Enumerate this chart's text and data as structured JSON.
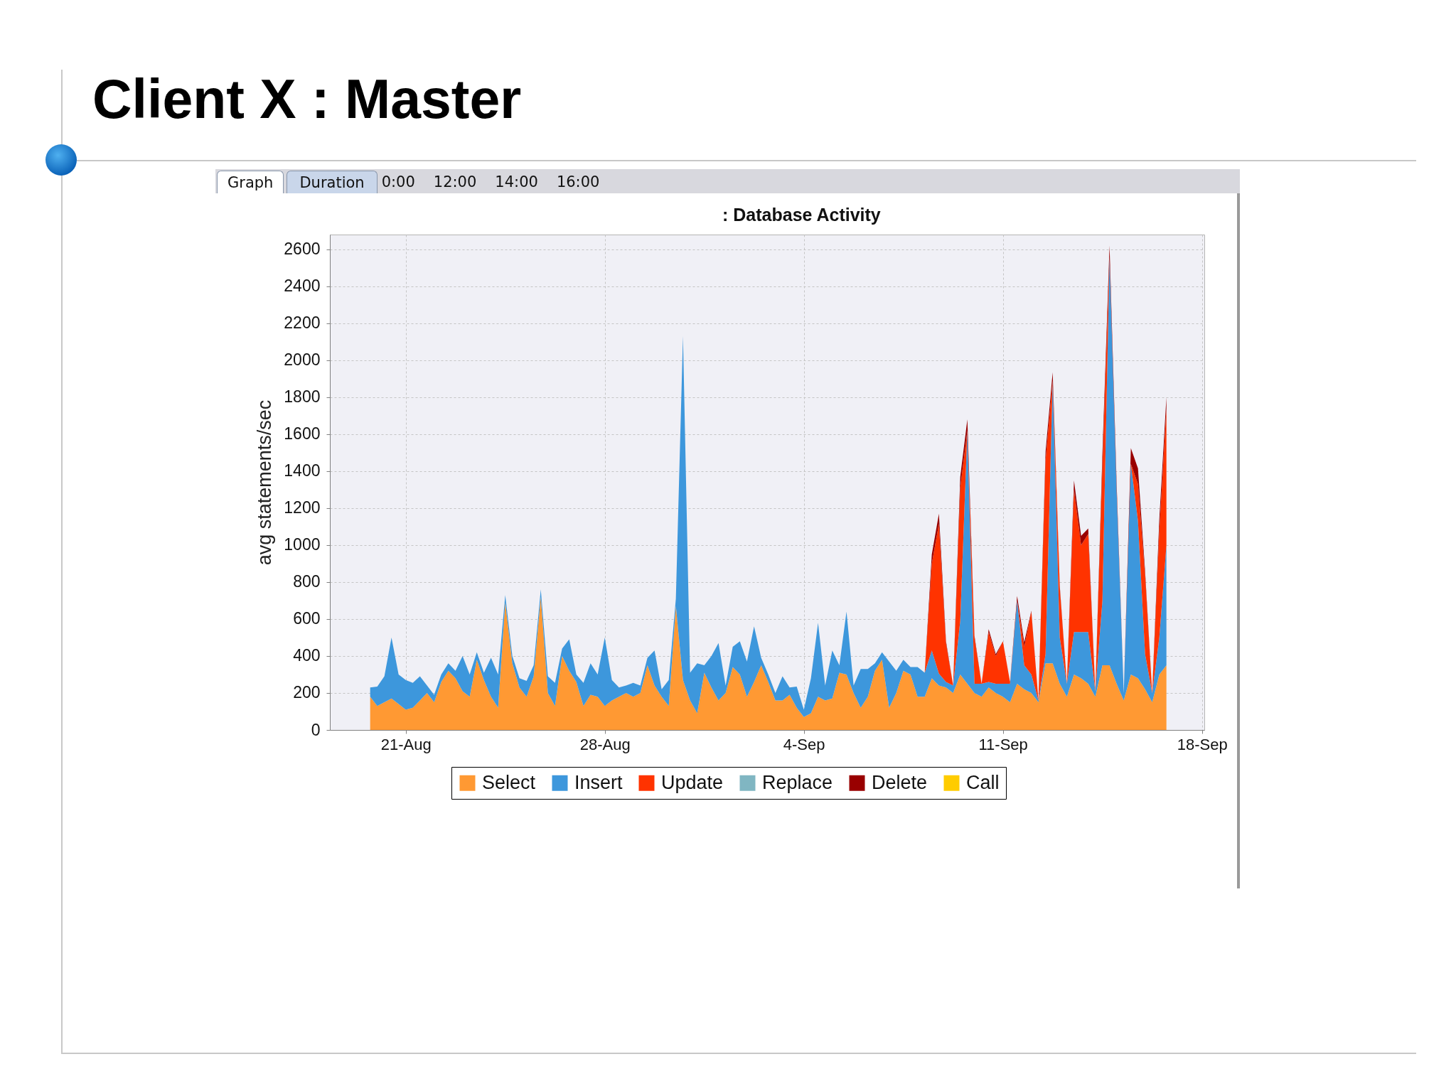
{
  "chart_data": {
    "type": "area",
    "stacked": true,
    "title": "Client X : Master",
    "subtitle": ": Database Activity",
    "ylabel": "avg statements/sec",
    "annotations": [
      "Graph",
      "Duration",
      "0:00",
      "12:00",
      "14:00",
      "16:00"
    ],
    "xlim": [
      "--08-18T08:00",
      "--09-18T02:00"
    ],
    "xticks": [
      {
        "value": "--08-21",
        "label": "21-Aug"
      },
      {
        "value": "--08-28",
        "label": "28-Aug"
      },
      {
        "value": "--09-04",
        "label": "4-Sep"
      },
      {
        "value": "--09-11",
        "label": "11-Sep"
      },
      {
        "value": "--09-18",
        "label": "18-Sep"
      }
    ],
    "ylim": [
      0,
      2680
    ],
    "yticks": [
      0,
      200,
      400,
      600,
      800,
      1000,
      1200,
      1400,
      1600,
      1800,
      2000,
      2200,
      2400,
      2600
    ],
    "grid": true,
    "legend": "bottom",
    "x": [
      "--08-19T18:00",
      "--08-20T00:00",
      "--08-20T06:00",
      "--08-20T12:00",
      "--08-20T18:00",
      "--08-21T00:00",
      "--08-21T06:00",
      "--08-21T12:00",
      "--08-21T18:00",
      "--08-22T00:00",
      "--08-22T06:00",
      "--08-22T12:00",
      "--08-22T18:00",
      "--08-23T00:00",
      "--08-23T06:00",
      "--08-23T12:00",
      "--08-23T18:00",
      "--08-24T00:00",
      "--08-24T06:00",
      "--08-24T12:00",
      "--08-24T18:00",
      "--08-25T00:00",
      "--08-25T06:00",
      "--08-25T12:00",
      "--08-25T18:00",
      "--08-26T00:00",
      "--08-26T06:00",
      "--08-26T12:00",
      "--08-26T18:00",
      "--08-27T00:00",
      "--08-27T06:00",
      "--08-27T12:00",
      "--08-27T18:00",
      "--08-28T00:00",
      "--08-28T06:00",
      "--08-28T12:00",
      "--08-28T18:00",
      "--08-29T00:00",
      "--08-29T06:00",
      "--08-29T12:00",
      "--08-29T18:00",
      "--08-30T00:00",
      "--08-30T06:00",
      "--08-30T12:00",
      "--08-30T18:00",
      "--08-31T00:00",
      "--08-31T06:00",
      "--08-31T12:00",
      "--08-31T18:00",
      "--09-01T00:00",
      "--09-01T06:00",
      "--09-01T12:00",
      "--09-01T18:00",
      "--09-02T00:00",
      "--09-02T06:00",
      "--09-02T12:00",
      "--09-02T18:00",
      "--09-03T00:00",
      "--09-03T06:00",
      "--09-03T12:00",
      "--09-03T18:00",
      "--09-04T00:00",
      "--09-04T06:00",
      "--09-04T12:00",
      "--09-04T18:00",
      "--09-05T00:00",
      "--09-05T06:00",
      "--09-05T12:00",
      "--09-05T18:00",
      "--09-06T00:00",
      "--09-06T06:00",
      "--09-06T12:00",
      "--09-06T18:00",
      "--09-07T00:00",
      "--09-07T06:00",
      "--09-07T12:00",
      "--09-07T18:00",
      "--09-08T00:00",
      "--09-08T06:00",
      "--09-08T12:00",
      "--09-08T18:00",
      "--09-09T00:00",
      "--09-09T06:00",
      "--09-09T12:00",
      "--09-09T18:00",
      "--09-10T00:00",
      "--09-10T06:00",
      "--09-10T12:00",
      "--09-10T18:00",
      "--09-11T00:00",
      "--09-11T06:00",
      "--09-11T12:00",
      "--09-11T18:00",
      "--09-12T00:00",
      "--09-12T06:00",
      "--09-12T12:00",
      "--09-12T18:00",
      "--09-13T00:00",
      "--09-13T06:00",
      "--09-13T12:00",
      "--09-13T18:00",
      "--09-14T00:00",
      "--09-14T06:00",
      "--09-14T12:00",
      "--09-14T18:00",
      "--09-15T00:00",
      "--09-15T06:00",
      "--09-15T12:00",
      "--09-15T18:00",
      "--09-16T00:00",
      "--09-16T06:00",
      "--09-16T12:00",
      "--09-16T18:00"
    ],
    "series": [
      {
        "name": "Select",
        "color": "#ff9933",
        "values": [
          180,
          130,
          150,
          170,
          140,
          110,
          120,
          160,
          200,
          150,
          260,
          320,
          280,
          210,
          180,
          380,
          270,
          180,
          120,
          690,
          360,
          230,
          180,
          290,
          720,
          200,
          130,
          400,
          320,
          260,
          130,
          190,
          180,
          130,
          160,
          180,
          200,
          180,
          200,
          350,
          240,
          180,
          130,
          670,
          270,
          160,
          90,
          310,
          230,
          160,
          200,
          340,
          300,
          180,
          260,
          350,
          260,
          160,
          160,
          190,
          120,
          70,
          90,
          180,
          160,
          170,
          310,
          300,
          200,
          120,
          180,
          320,
          380,
          120,
          200,
          320,
          300,
          180,
          180,
          280,
          240,
          230,
          200,
          300,
          250,
          200,
          180,
          230,
          200,
          180,
          150,
          250,
          220,
          200,
          150,
          360,
          360,
          250,
          180,
          300,
          280,
          250,
          180,
          350,
          350,
          250,
          160,
          300,
          280,
          220,
          150,
          300,
          350
        ]
      },
      {
        "name": "Insert",
        "color": "#3d97dc",
        "values": [
          50,
          105,
          140,
          330,
          160,
          160,
          135,
          130,
          40,
          40,
          40,
          40,
          40,
          190,
          120,
          40,
          40,
          210,
          180,
          40,
          40,
          50,
          85,
          60,
          40,
          90,
          125,
          40,
          170,
          40,
          125,
          170,
          120,
          370,
          110,
          50,
          40,
          75,
          40,
          40,
          190,
          40,
          140,
          40,
          1860,
          150,
          270,
          40,
          170,
          310,
          40,
          110,
          180,
          190,
          300,
          40,
          40,
          40,
          130,
          40,
          115,
          40,
          190,
          400,
          80,
          260,
          40,
          340,
          40,
          210,
          150,
          40,
          40,
          250,
          120,
          60,
          40,
          160,
          130,
          150,
          65,
          30,
          40,
          290,
          1370,
          50,
          70,
          30,
          50,
          70,
          100,
          450,
          130,
          100,
          10,
          50,
          1530,
          250,
          70,
          230,
          250,
          280,
          30,
          350,
          2210,
          1040,
          40,
          1140,
          850,
          190,
          50,
          200,
          650
        ]
      },
      {
        "name": "Update",
        "color": "#ff3300",
        "values": [
          0,
          0,
          0,
          0,
          0,
          0,
          0,
          0,
          0,
          0,
          0,
          0,
          0,
          0,
          0,
          0,
          0,
          0,
          0,
          0,
          0,
          0,
          0,
          0,
          0,
          0,
          0,
          0,
          0,
          0,
          0,
          0,
          0,
          0,
          0,
          0,
          0,
          0,
          0,
          0,
          0,
          0,
          0,
          0,
          0,
          0,
          0,
          0,
          0,
          0,
          0,
          0,
          0,
          0,
          0,
          0,
          0,
          0,
          0,
          0,
          0,
          0,
          0,
          0,
          0,
          0,
          0,
          0,
          0,
          0,
          0,
          0,
          0,
          0,
          0,
          0,
          0,
          0,
          0,
          470,
          810,
          210,
          0,
          720,
          0,
          250,
          0,
          270,
          150,
          230,
          10,
          0,
          100,
          340,
          0,
          1050,
          0,
          270,
          0,
          770,
          470,
          530,
          0,
          740,
          0,
          0,
          0,
          0,
          200,
          430,
          0,
          580,
          740
        ]
      },
      {
        "name": "Replace",
        "color": "#80b6c2",
        "values": [
          null,
          null,
          null,
          null,
          null,
          null,
          null,
          null,
          null,
          null,
          null,
          null,
          null,
          null,
          null,
          null,
          null,
          null,
          null,
          null,
          null,
          null,
          null,
          null,
          null,
          null,
          null,
          null,
          null,
          null,
          null,
          null,
          null,
          null,
          null,
          null,
          null,
          null,
          null,
          null,
          null,
          null,
          null,
          null,
          null,
          null,
          null,
          null,
          null,
          null,
          null,
          null,
          null,
          null,
          null,
          null,
          null,
          null,
          null,
          null,
          null,
          null,
          null,
          null,
          null,
          null,
          null,
          null,
          null,
          null,
          null,
          null,
          null,
          null,
          null,
          null,
          null,
          null,
          null,
          null,
          null,
          null,
          null,
          null,
          null,
          null,
          null,
          null,
          null,
          null,
          null,
          null,
          null,
          null,
          null,
          null,
          null,
          null,
          null,
          null,
          null,
          null,
          null,
          null,
          null,
          null,
          null,
          null,
          null,
          null,
          null,
          null,
          null
        ]
      },
      {
        "name": "Delete",
        "color": "#990000",
        "values": [
          0,
          0,
          0,
          0,
          0,
          0,
          0,
          0,
          0,
          0,
          0,
          0,
          0,
          0,
          0,
          0,
          0,
          0,
          0,
          0,
          0,
          0,
          0,
          0,
          0,
          0,
          0,
          0,
          0,
          0,
          0,
          0,
          0,
          0,
          0,
          0,
          0,
          0,
          0,
          0,
          0,
          0,
          0,
          0,
          0,
          0,
          0,
          0,
          0,
          0,
          0,
          0,
          0,
          0,
          0,
          0,
          0,
          0,
          0,
          0,
          0,
          0,
          0,
          0,
          0,
          0,
          0,
          0,
          0,
          0,
          0,
          0,
          0,
          0,
          0,
          0,
          0,
          0,
          0,
          50,
          55,
          10,
          0,
          60,
          60,
          10,
          0,
          15,
          10,
          0,
          0,
          25,
          25,
          5,
          0,
          45,
          45,
          10,
          0,
          50,
          50,
          30,
          0,
          60,
          60,
          40,
          0,
          85,
          85,
          20,
          0,
          60,
          60
        ]
      },
      {
        "name": "Call",
        "color": "#ffcc00",
        "values": [
          null,
          null,
          null,
          null,
          null,
          null,
          null,
          null,
          null,
          null,
          null,
          null,
          null,
          null,
          null,
          null,
          null,
          null,
          null,
          null,
          null,
          null,
          null,
          null,
          null,
          null,
          null,
          null,
          null,
          null,
          null,
          null,
          null,
          null,
          null,
          null,
          null,
          null,
          null,
          null,
          null,
          null,
          null,
          null,
          null,
          null,
          null,
          null,
          null,
          null,
          null,
          null,
          null,
          null,
          null,
          null,
          null,
          null,
          null,
          null,
          null,
          null,
          null,
          null,
          null,
          null,
          null,
          null,
          null,
          null,
          null,
          null,
          null,
          null,
          null,
          null,
          null,
          null,
          null,
          null,
          null,
          null,
          null,
          null,
          null,
          null,
          null,
          null,
          null,
          null,
          null,
          null,
          null,
          null,
          null,
          null,
          null,
          null,
          null,
          null,
          null,
          null,
          null,
          null,
          null,
          null,
          null,
          null,
          null,
          null,
          null,
          null,
          null
        ]
      }
    ]
  }
}
